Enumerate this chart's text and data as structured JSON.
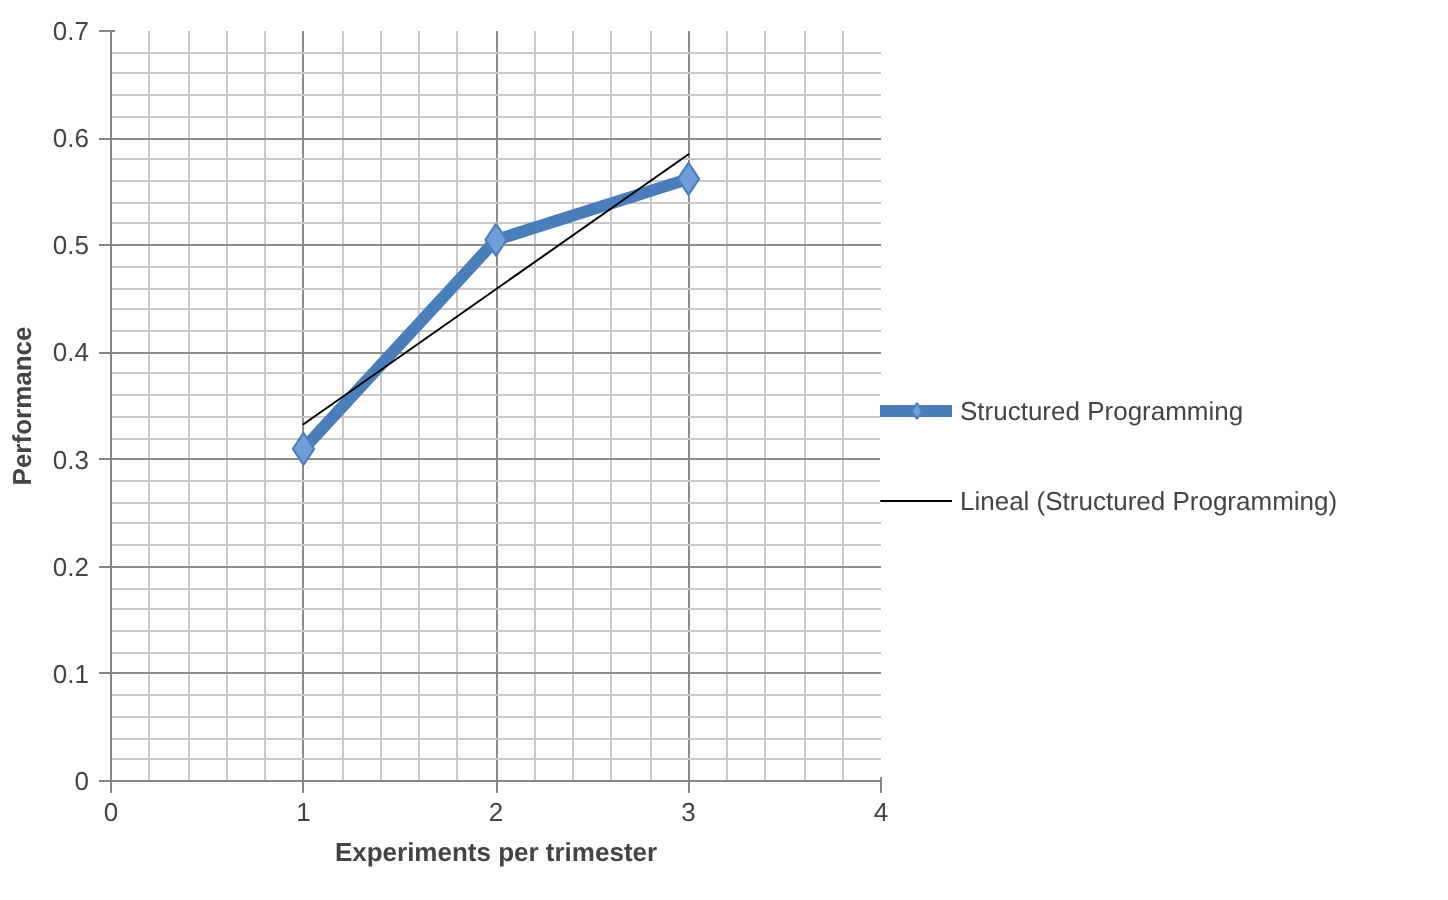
{
  "chart_data": {
    "type": "line",
    "xlabel": "Experiments per trimester",
    "ylabel": "Performance",
    "xlim": [
      0,
      4
    ],
    "xticks": [
      0,
      1,
      2,
      3,
      4
    ],
    "ylim": [
      0,
      0.7
    ],
    "yticks": [
      0,
      0.1,
      0.2,
      0.3,
      0.4,
      0.5,
      0.6,
      0.7
    ],
    "grid": true,
    "legend": "right",
    "series": [
      {
        "name": "Structured Programming",
        "color": "#4a7ebb",
        "marker": "diamond",
        "x": [
          1,
          2,
          3
        ],
        "values": [
          0.31,
          0.505,
          0.562
        ]
      },
      {
        "name": "Lineal (Structured Programming)",
        "color": "#000000",
        "marker": "none",
        "x": [
          1,
          3
        ],
        "values": [
          0.333,
          0.585
        ]
      }
    ]
  }
}
